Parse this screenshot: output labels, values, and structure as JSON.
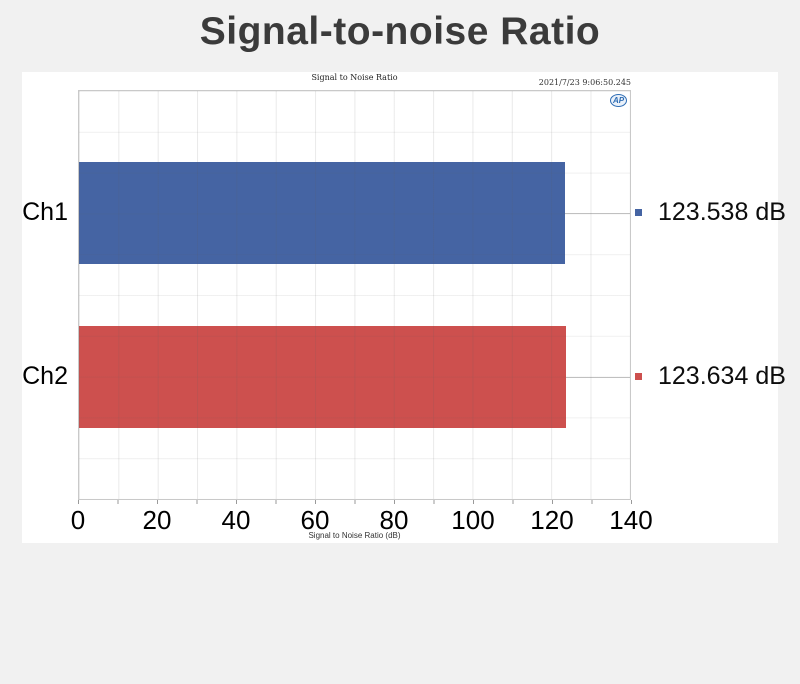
{
  "page": {
    "title": "Signal-to-noise Ratio"
  },
  "panel": {
    "inner_title": "Signal to Noise Ratio",
    "timestamp": "2021/7/23 9:06:50.245",
    "logo_text": "AP",
    "axis_title": "Signal to Noise Ratio (dB)"
  },
  "chart_data": {
    "type": "bar",
    "orientation": "horizontal",
    "title": "Signal to Noise Ratio",
    "xlabel": "Signal to Noise Ratio (dB)",
    "xlim": [
      0,
      140
    ],
    "xticks": [
      0,
      20,
      40,
      60,
      80,
      100,
      120,
      140
    ],
    "minor_grid_step_x": 10,
    "grid": true,
    "categories": [
      "Ch1",
      "Ch2"
    ],
    "values": [
      123.538,
      123.634
    ],
    "value_labels": [
      "123.538 dB",
      "123.634 dB"
    ],
    "unit": "dB",
    "bar_colors": [
      "#4564a3",
      "#cd504e"
    ],
    "legend_position": "right-of-plot"
  }
}
